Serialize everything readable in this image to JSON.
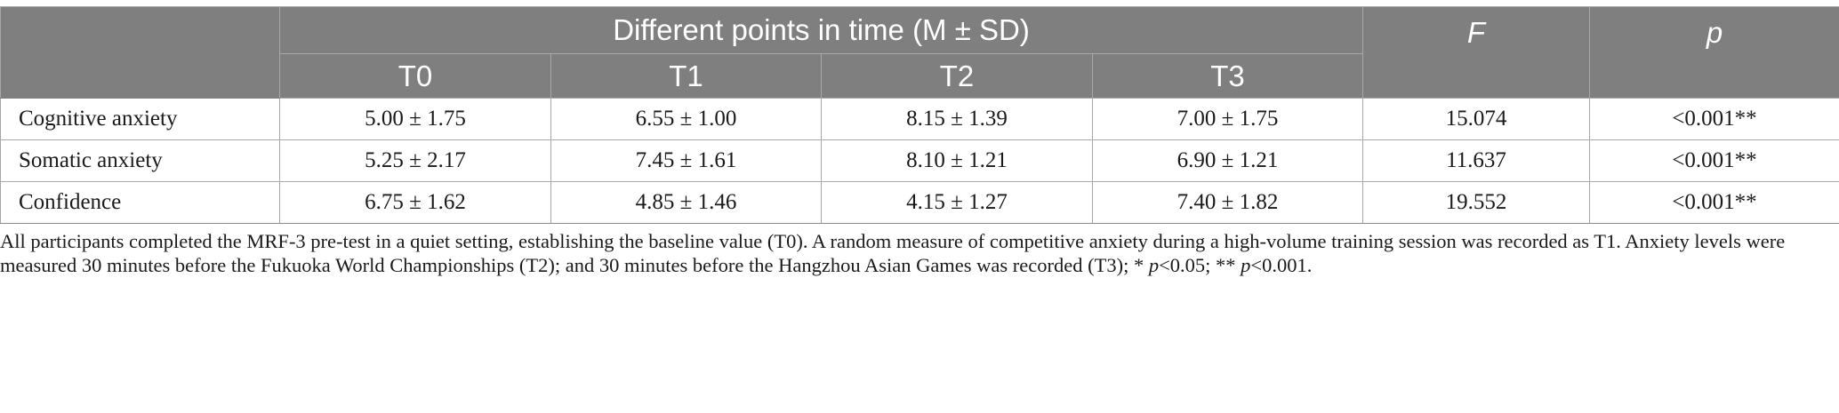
{
  "table": {
    "group_header": "Different points in time (M ± SD)",
    "columns": [
      "T0",
      "T1",
      "T2",
      "T3"
    ],
    "f_header": "F",
    "p_header": "p",
    "rows": [
      {
        "label": "Cognitive anxiety",
        "t0": "5.00 ± 1.75",
        "t1": "6.55 ± 1.00",
        "t2": "8.15 ± 1.39",
        "t3": "7.00 ± 1.75",
        "f": "15.074",
        "p": "<0.001**"
      },
      {
        "label": "Somatic anxiety",
        "t0": "5.25 ± 2.17",
        "t1": "7.45 ± 1.61",
        "t2": "8.10 ± 1.21",
        "t3": "6.90 ± 1.21",
        "f": "11.637",
        "p": "<0.001**"
      },
      {
        "label": "Confidence",
        "t0": "6.75 ± 1.62",
        "t1": "4.85 ± 1.46",
        "t2": "4.15 ± 1.27",
        "t3": "7.40 ± 1.82",
        "f": "19.552",
        "p": "<0.001**"
      }
    ]
  },
  "footnote": {
    "text": "All participants completed the MRF-3 pre-test in a quiet setting, establishing the baseline value (T0). A random measure of competitive anxiety during a high-volume training session was recorded as T1. Anxiety levels were measured 30 minutes before the Fukuoka World Championships (T2); and 30 minutes before the Hangzhou Asian Games was recorded (T3); * ",
    "p1_italic": "p",
    "p1_rest": "<0.05; ** ",
    "p2_italic": "p",
    "p2_rest": "<0.001."
  }
}
